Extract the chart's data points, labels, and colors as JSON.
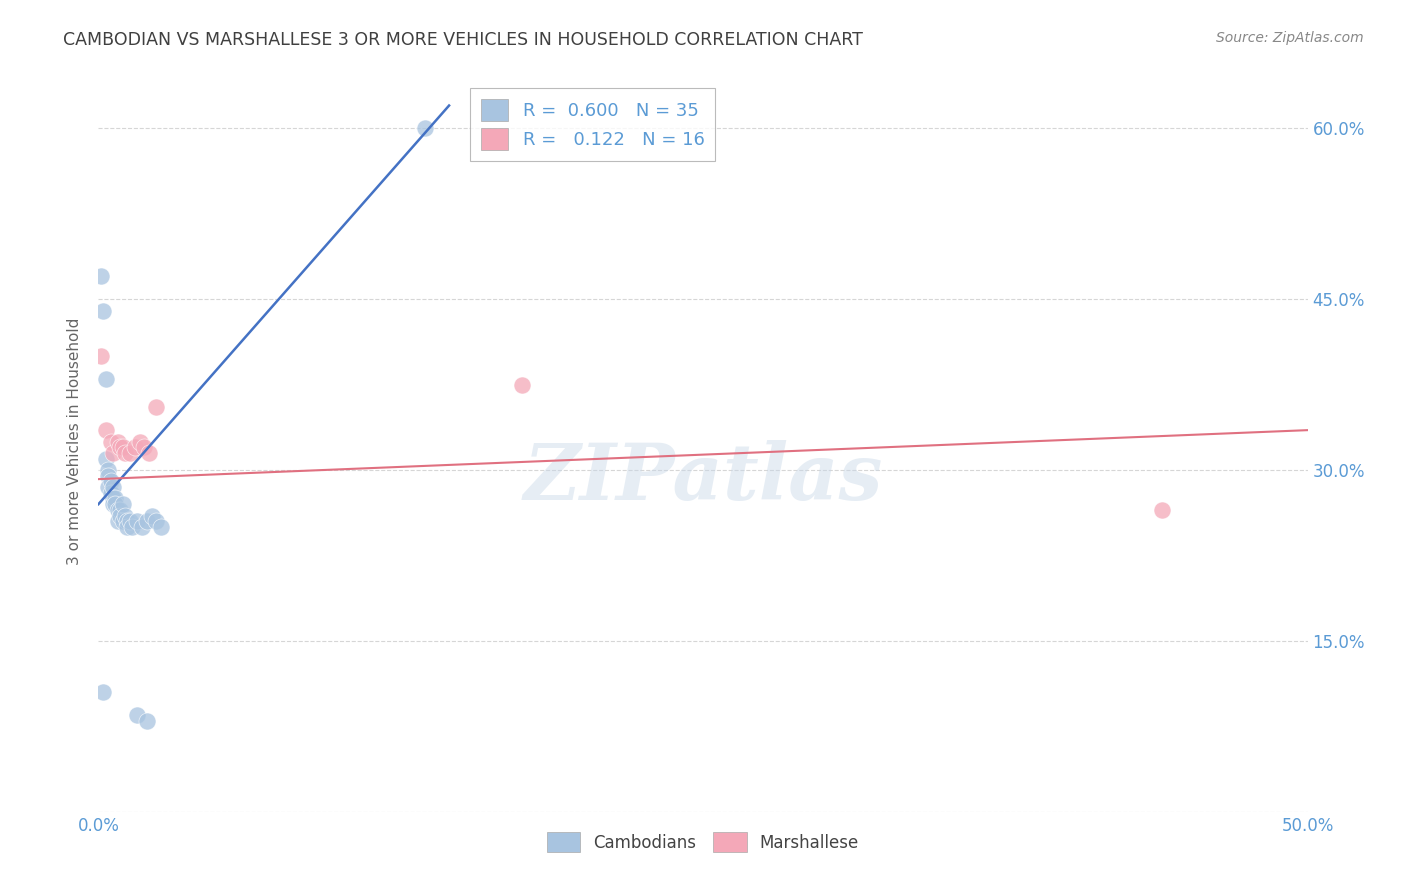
{
  "title": "CAMBODIAN VS MARSHALLESE 3 OR MORE VEHICLES IN HOUSEHOLD CORRELATION CHART",
  "source": "Source: ZipAtlas.com",
  "ylabel": "3 or more Vehicles in Household",
  "xlim": [
    0.0,
    0.5
  ],
  "ylim": [
    0.0,
    0.65
  ],
  "xticks": [
    0.0,
    0.05,
    0.1,
    0.15,
    0.2,
    0.25,
    0.3,
    0.35,
    0.4,
    0.45,
    0.5
  ],
  "yticks": [
    0.0,
    0.15,
    0.3,
    0.45,
    0.6
  ],
  "legend_cambodian_R": "0.600",
  "legend_cambodian_N": "35",
  "legend_marshallese_R": "0.122",
  "legend_marshallese_N": "16",
  "watermark": "ZIPatlas",
  "cambodian_color": "#a8c4e0",
  "marshallese_color": "#f4a8b8",
  "cambodian_line_color": "#4472c4",
  "marshallese_line_color": "#e07080",
  "cambodian_scatter": [
    [
      0.001,
      0.47
    ],
    [
      0.002,
      0.44
    ],
    [
      0.003,
      0.38
    ],
    [
      0.003,
      0.31
    ],
    [
      0.004,
      0.3
    ],
    [
      0.004,
      0.295
    ],
    [
      0.004,
      0.285
    ],
    [
      0.005,
      0.29
    ],
    [
      0.005,
      0.28
    ],
    [
      0.006,
      0.285
    ],
    [
      0.006,
      0.275
    ],
    [
      0.006,
      0.27
    ],
    [
      0.007,
      0.275
    ],
    [
      0.007,
      0.27
    ],
    [
      0.008,
      0.265
    ],
    [
      0.008,
      0.255
    ],
    [
      0.009,
      0.265
    ],
    [
      0.009,
      0.26
    ],
    [
      0.01,
      0.27
    ],
    [
      0.01,
      0.255
    ],
    [
      0.011,
      0.26
    ],
    [
      0.012,
      0.255
    ],
    [
      0.012,
      0.25
    ],
    [
      0.013,
      0.255
    ],
    [
      0.014,
      0.25
    ],
    [
      0.016,
      0.255
    ],
    [
      0.018,
      0.25
    ],
    [
      0.02,
      0.255
    ],
    [
      0.022,
      0.26
    ],
    [
      0.024,
      0.255
    ],
    [
      0.026,
      0.25
    ],
    [
      0.002,
      0.105
    ],
    [
      0.016,
      0.085
    ],
    [
      0.02,
      0.08
    ],
    [
      0.135,
      0.6
    ]
  ],
  "marshallese_scatter": [
    [
      0.001,
      0.4
    ],
    [
      0.003,
      0.335
    ],
    [
      0.005,
      0.325
    ],
    [
      0.006,
      0.315
    ],
    [
      0.008,
      0.325
    ],
    [
      0.009,
      0.32
    ],
    [
      0.01,
      0.32
    ],
    [
      0.011,
      0.315
    ],
    [
      0.013,
      0.315
    ],
    [
      0.015,
      0.32
    ],
    [
      0.017,
      0.325
    ],
    [
      0.019,
      0.32
    ],
    [
      0.021,
      0.315
    ],
    [
      0.024,
      0.355
    ],
    [
      0.175,
      0.375
    ],
    [
      0.44,
      0.265
    ]
  ],
  "cambodian_line_x": [
    0.0,
    0.145
  ],
  "cambodian_line_y": [
    0.27,
    0.62
  ],
  "marshallese_line_x": [
    0.0,
    0.5
  ],
  "marshallese_line_y": [
    0.292,
    0.335
  ],
  "background_color": "#ffffff",
  "grid_color": "#cccccc",
  "tick_color": "#5b9bd5",
  "ylabel_color": "#666666",
  "title_color": "#404040",
  "source_color": "#888888"
}
